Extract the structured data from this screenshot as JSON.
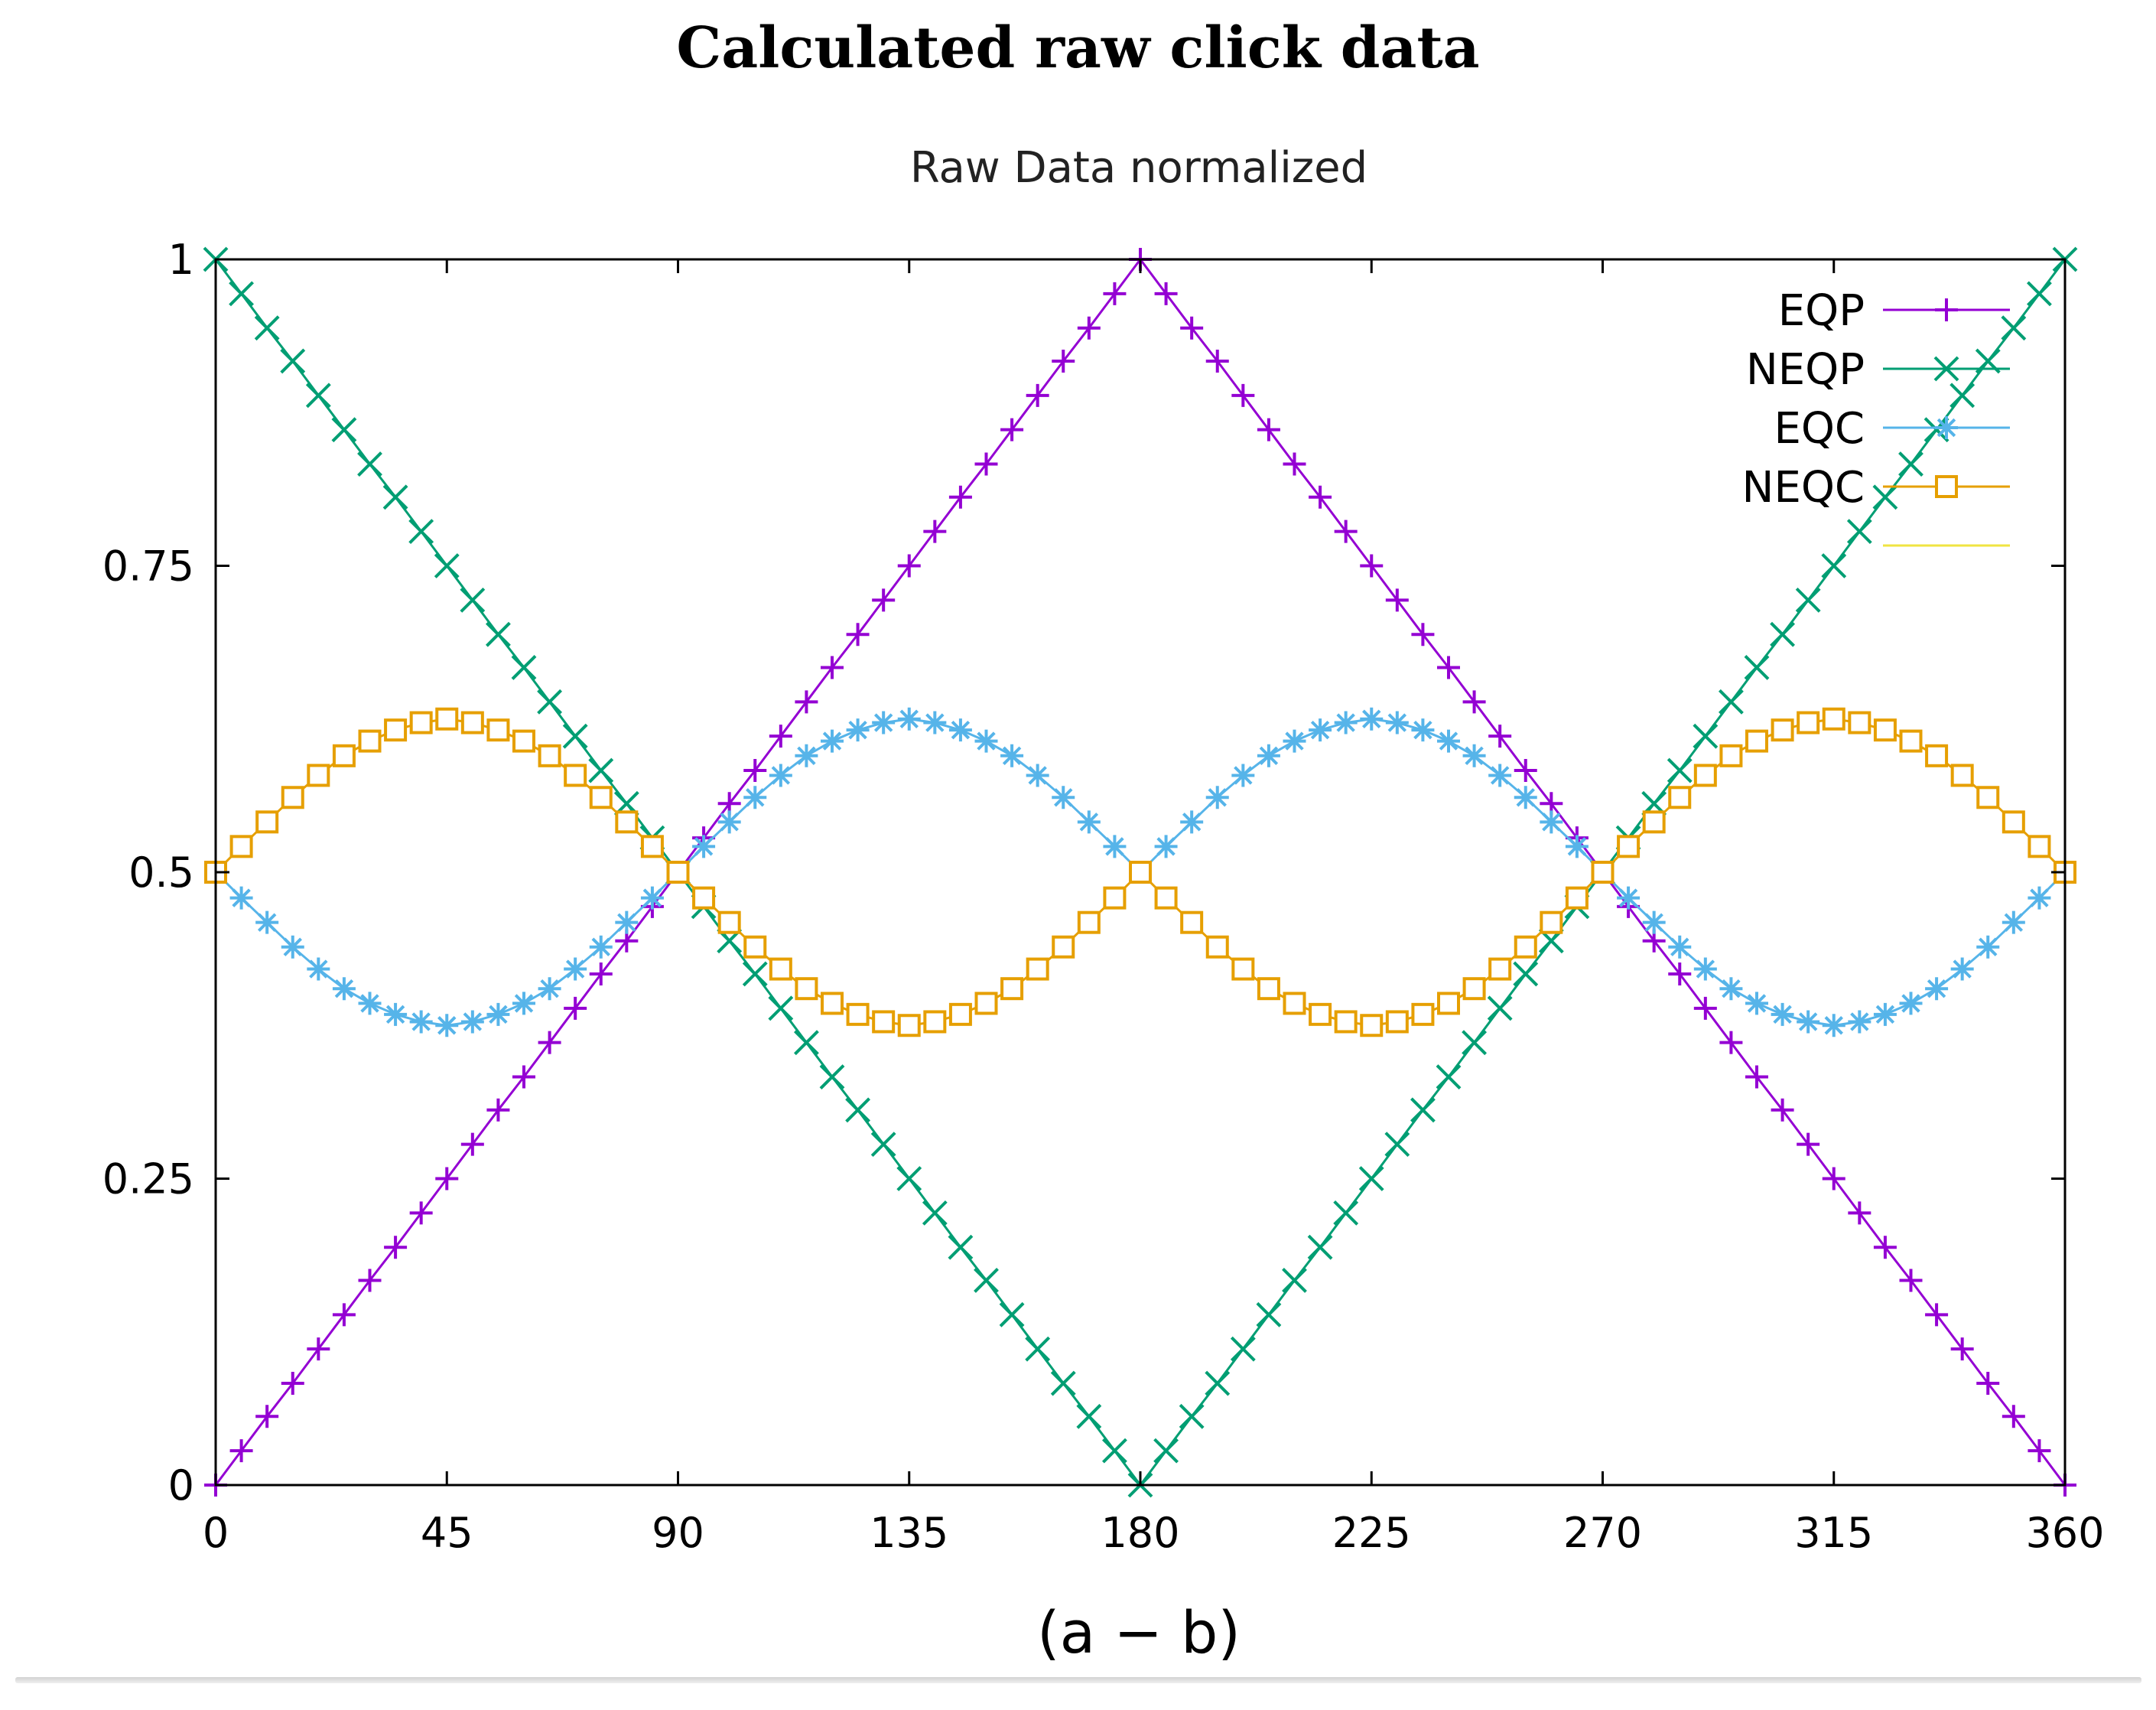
{
  "figure_title": "Calculated raw click data",
  "colors": {
    "EQP": "#9400d3",
    "NEQP": "#009e73",
    "EQC": "#56b4e9",
    "NEQC": "#e69f00",
    "blank_entry": "#f0e442"
  },
  "chart_data": {
    "type": "line",
    "title": "Raw Data normalized",
    "xlabel": "(a − b)",
    "ylabel": "",
    "xlim": [
      0,
      360
    ],
    "ylim": [
      0,
      1
    ],
    "xticks": [
      0,
      45,
      90,
      135,
      180,
      225,
      270,
      315,
      360
    ],
    "xtick_labels": [
      "0",
      "45",
      "90",
      "135",
      "180",
      "225",
      "270",
      "315",
      "360"
    ],
    "yticks": [
      0,
      0.25,
      0.5,
      0.75,
      1
    ],
    "ytick_labels": [
      "0",
      "0.25",
      "0.5",
      "0.75",
      "1"
    ],
    "grid": false,
    "legend_position": "top-right",
    "x": [
      0,
      5,
      10,
      15,
      20,
      25,
      30,
      35,
      40,
      45,
      50,
      55,
      60,
      65,
      70,
      75,
      80,
      85,
      90,
      95,
      100,
      105,
      110,
      115,
      120,
      125,
      130,
      135,
      140,
      145,
      150,
      155,
      160,
      165,
      170,
      175,
      180,
      185,
      190,
      195,
      200,
      205,
      210,
      215,
      220,
      225,
      230,
      235,
      240,
      245,
      250,
      255,
      260,
      265,
      270,
      275,
      280,
      285,
      290,
      295,
      300,
      305,
      310,
      315,
      320,
      325,
      330,
      335,
      340,
      345,
      350,
      355,
      360
    ],
    "series": [
      {
        "name": "EQP",
        "marker": "plus",
        "values": [
          0,
          0.028,
          0.056,
          0.083,
          0.111,
          0.139,
          0.167,
          0.194,
          0.222,
          0.25,
          0.278,
          0.306,
          0.333,
          0.361,
          0.389,
          0.417,
          0.444,
          0.472,
          0.5,
          0.528,
          0.556,
          0.583,
          0.611,
          0.639,
          0.667,
          0.694,
          0.722,
          0.75,
          0.778,
          0.806,
          0.833,
          0.861,
          0.889,
          0.917,
          0.944,
          0.972,
          1,
          0.972,
          0.944,
          0.917,
          0.889,
          0.861,
          0.833,
          0.806,
          0.778,
          0.75,
          0.722,
          0.694,
          0.667,
          0.639,
          0.611,
          0.583,
          0.556,
          0.528,
          0.5,
          0.472,
          0.444,
          0.417,
          0.389,
          0.361,
          0.333,
          0.306,
          0.278,
          0.25,
          0.222,
          0.194,
          0.167,
          0.139,
          0.111,
          0.083,
          0.056,
          0.028,
          0
        ]
      },
      {
        "name": "NEQP",
        "marker": "cross",
        "values": [
          1,
          0.972,
          0.944,
          0.917,
          0.889,
          0.861,
          0.833,
          0.806,
          0.778,
          0.75,
          0.722,
          0.694,
          0.667,
          0.639,
          0.611,
          0.583,
          0.556,
          0.528,
          0.5,
          0.472,
          0.444,
          0.417,
          0.389,
          0.361,
          0.333,
          0.306,
          0.278,
          0.25,
          0.222,
          0.194,
          0.167,
          0.139,
          0.111,
          0.083,
          0.056,
          0.028,
          0,
          0.028,
          0.056,
          0.083,
          0.111,
          0.139,
          0.167,
          0.194,
          0.222,
          0.25,
          0.278,
          0.306,
          0.333,
          0.361,
          0.389,
          0.417,
          0.444,
          0.472,
          0.5,
          0.528,
          0.556,
          0.583,
          0.611,
          0.639,
          0.667,
          0.694,
          0.722,
          0.75,
          0.778,
          0.806,
          0.833,
          0.861,
          0.889,
          0.917,
          0.944,
          0.972,
          1
        ]
      },
      {
        "name": "EQC",
        "marker": "star",
        "values": [
          0.5,
          0.479,
          0.459,
          0.439,
          0.421,
          0.405,
          0.393,
          0.384,
          0.378,
          0.375,
          0.378,
          0.384,
          0.393,
          0.405,
          0.421,
          0.439,
          0.459,
          0.479,
          0.5,
          0.521,
          0.541,
          0.561,
          0.579,
          0.595,
          0.607,
          0.616,
          0.622,
          0.625,
          0.622,
          0.616,
          0.607,
          0.595,
          0.579,
          0.561,
          0.541,
          0.521,
          0.5,
          0.521,
          0.541,
          0.561,
          0.579,
          0.595,
          0.607,
          0.616,
          0.622,
          0.625,
          0.622,
          0.616,
          0.607,
          0.595,
          0.579,
          0.561,
          0.541,
          0.521,
          0.5,
          0.479,
          0.459,
          0.439,
          0.421,
          0.405,
          0.393,
          0.384,
          0.378,
          0.375,
          0.378,
          0.384,
          0.393,
          0.405,
          0.421,
          0.439,
          0.459,
          0.479,
          0.5
        ]
      },
      {
        "name": "NEQC",
        "marker": "open-square",
        "values": [
          0.5,
          0.521,
          0.541,
          0.561,
          0.579,
          0.595,
          0.607,
          0.616,
          0.622,
          0.625,
          0.622,
          0.616,
          0.607,
          0.595,
          0.579,
          0.561,
          0.541,
          0.521,
          0.5,
          0.479,
          0.459,
          0.439,
          0.421,
          0.405,
          0.393,
          0.384,
          0.378,
          0.375,
          0.378,
          0.384,
          0.393,
          0.405,
          0.421,
          0.439,
          0.459,
          0.479,
          0.5,
          0.479,
          0.459,
          0.439,
          0.421,
          0.405,
          0.393,
          0.384,
          0.378,
          0.375,
          0.378,
          0.384,
          0.393,
          0.405,
          0.421,
          0.439,
          0.459,
          0.479,
          0.5,
          0.521,
          0.541,
          0.561,
          0.579,
          0.595,
          0.607,
          0.616,
          0.622,
          0.625,
          0.622,
          0.616,
          0.607,
          0.595,
          0.579,
          0.561,
          0.541,
          0.521,
          0.5
        ]
      }
    ],
    "legend_extra_entry": {
      "label": "",
      "color": "#f0e442"
    }
  }
}
